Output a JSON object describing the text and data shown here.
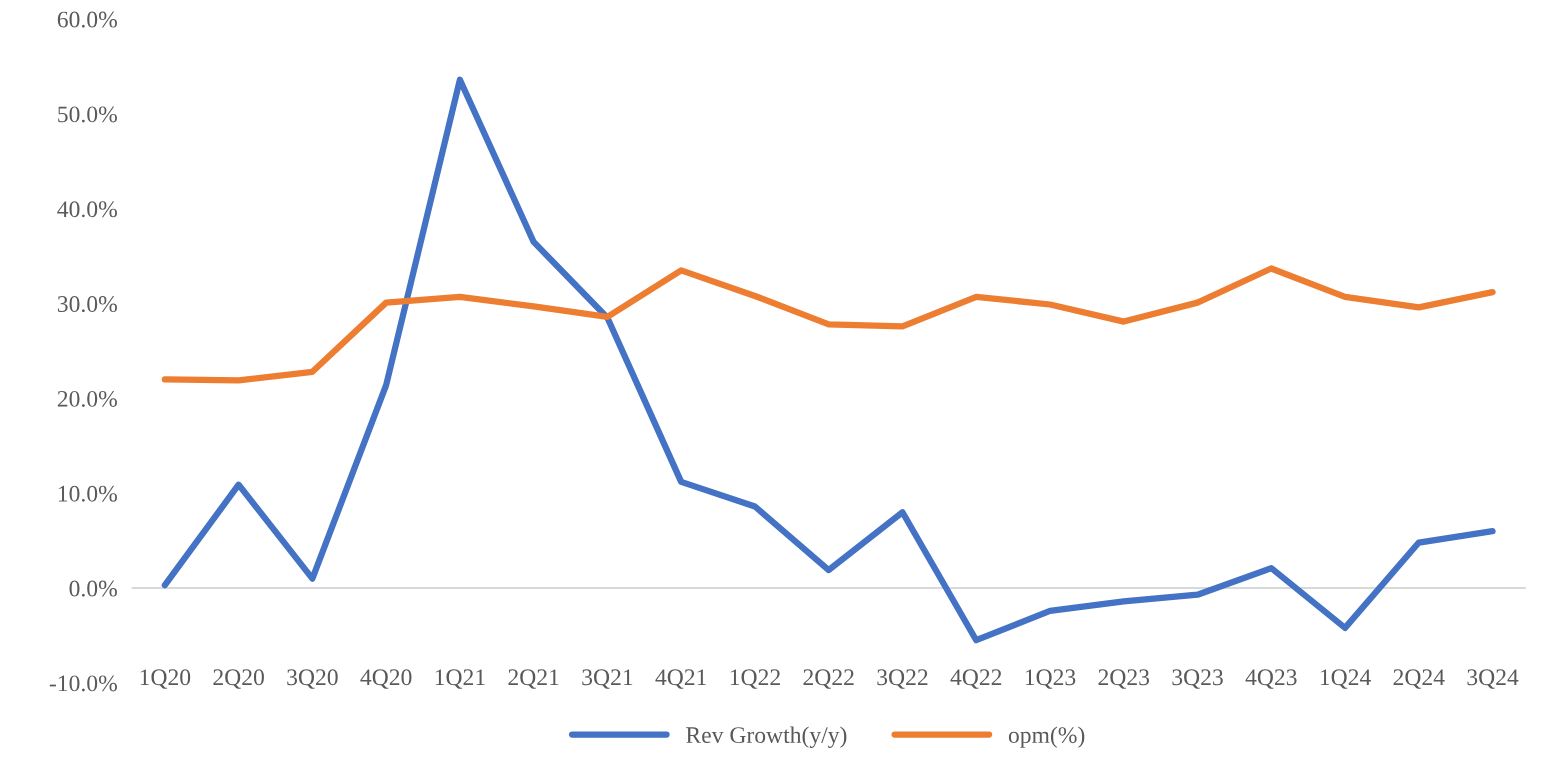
{
  "chart_data": {
    "type": "line",
    "categories": [
      "1Q20",
      "2Q20",
      "3Q20",
      "4Q20",
      "1Q21",
      "2Q21",
      "3Q21",
      "4Q21",
      "1Q22",
      "2Q22",
      "3Q22",
      "4Q22",
      "1Q23",
      "2Q23",
      "3Q23",
      "4Q23",
      "1Q24",
      "2Q24",
      "3Q24"
    ],
    "series": [
      {
        "name": "Rev Growth(y/y)",
        "color": "#4472c4",
        "values": [
          0.3,
          10.9,
          1.0,
          21.4,
          53.6,
          36.5,
          28.5,
          11.2,
          8.6,
          1.9,
          8.0,
          -5.5,
          -2.4,
          -1.4,
          -0.7,
          2.1,
          -4.2,
          4.8,
          6.0
        ]
      },
      {
        "name": "opm(%)",
        "color": "#ed7d31",
        "values": [
          22.0,
          21.9,
          22.8,
          30.1,
          30.7,
          29.7,
          28.6,
          33.5,
          30.8,
          27.8,
          27.6,
          30.7,
          29.9,
          28.1,
          30.1,
          33.7,
          30.7,
          29.6,
          31.2
        ]
      }
    ],
    "ylim": [
      -10,
      60
    ],
    "yticks": [
      {
        "value": -10,
        "label": "-10.0%"
      },
      {
        "value": 0,
        "label": "0.0%"
      },
      {
        "value": 10,
        "label": "10.0%"
      },
      {
        "value": 20,
        "label": "20.0%"
      },
      {
        "value": 30,
        "label": "30.0%"
      },
      {
        "value": 40,
        "label": "40.0%"
      },
      {
        "value": 50,
        "label": "50.0%"
      },
      {
        "value": 60,
        "label": "60.0%"
      }
    ],
    "ref_lines": [
      {
        "axis": "y",
        "value": 0,
        "color": "#d9d9d9"
      }
    ],
    "grid": false,
    "legend": "bottom",
    "marker": "none",
    "line_style": "solid"
  }
}
